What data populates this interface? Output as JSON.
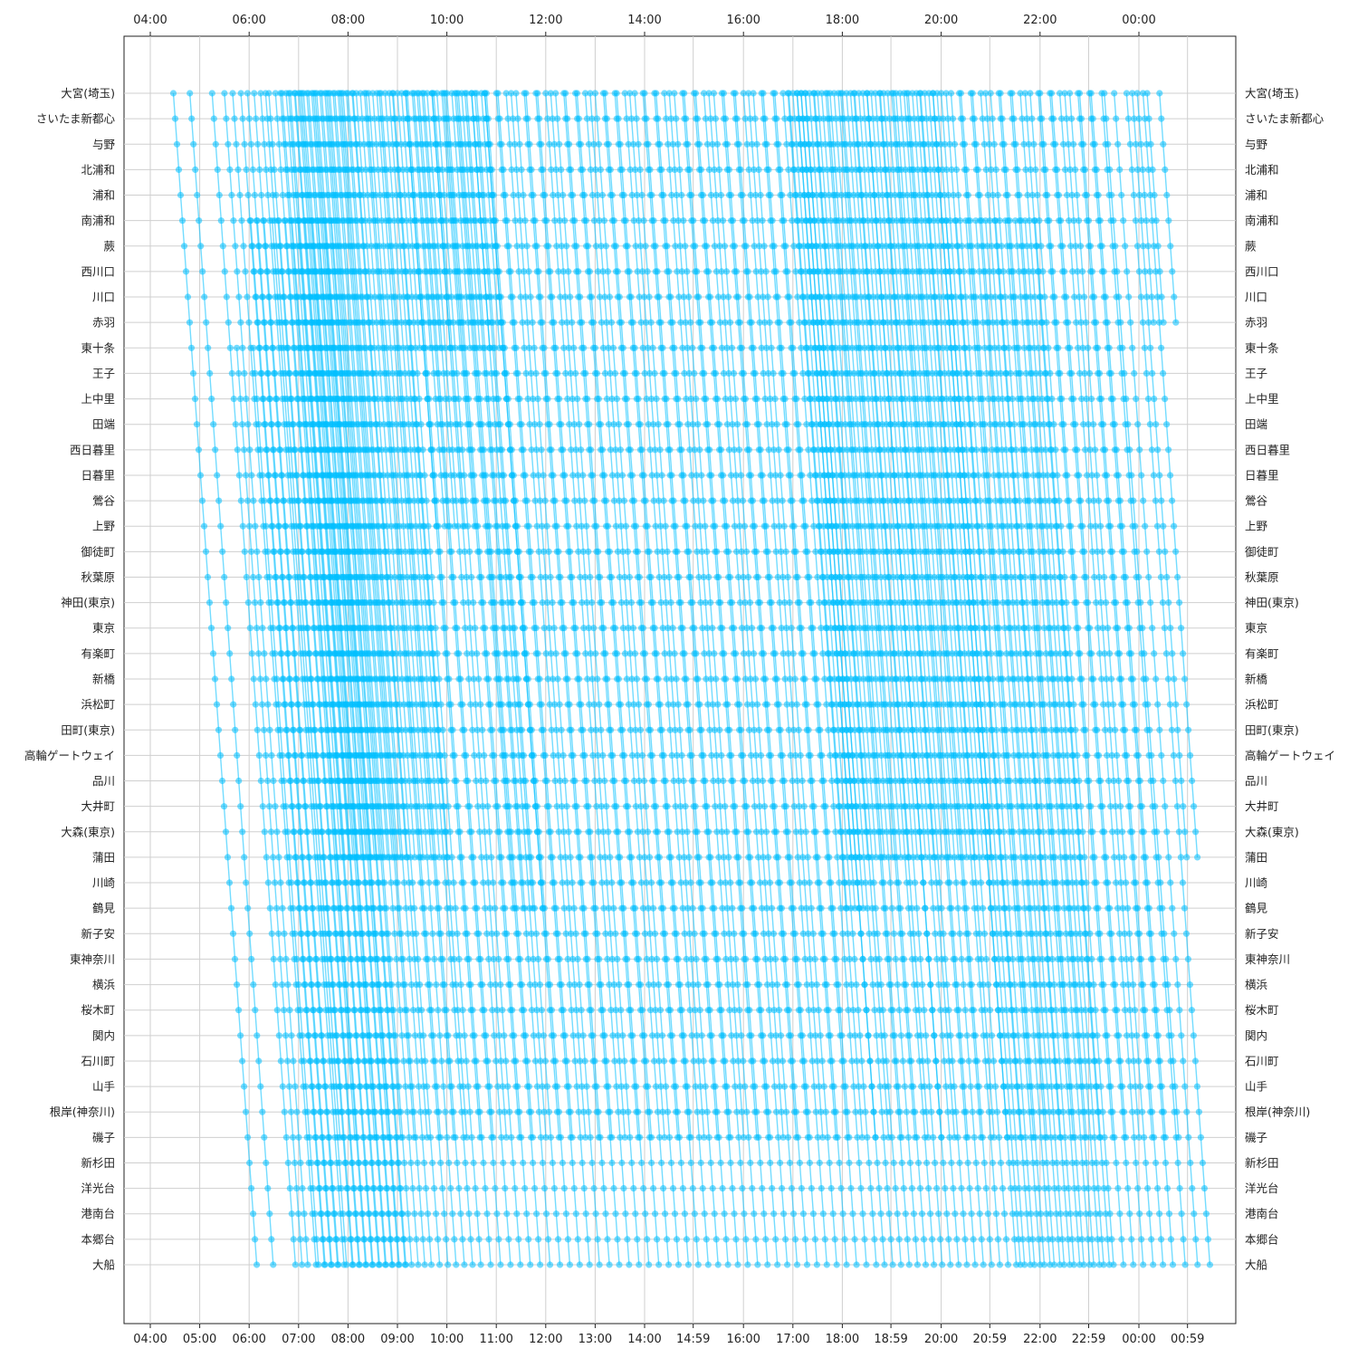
{
  "chart_data": {
    "type": "line",
    "title": "",
    "xlabel": "",
    "ylabel": "",
    "grid": true,
    "line_color": "#00BFFF",
    "x_range": [
      "04:00",
      "01:12"
    ],
    "x_ticks_top": [
      "04:00",
      "06:00",
      "08:00",
      "10:00",
      "12:00",
      "14:00",
      "16:00",
      "18:00",
      "20:00",
      "22:00",
      "00:00"
    ],
    "x_ticks_bottom": [
      "04:00",
      "05:00",
      "06:00",
      "07:00",
      "08:00",
      "09:00",
      "10:00",
      "11:00",
      "12:00",
      "13:00",
      "14:00",
      "14:59",
      "16:00",
      "17:00",
      "18:00",
      "18:59",
      "20:00",
      "20:59",
      "22:00",
      "22:59",
      "00:00",
      "00:59"
    ],
    "stations": [
      "大宮(埼玉)",
      "さいたま新都心",
      "与野",
      "北浦和",
      "浦和",
      "南浦和",
      "蕨",
      "西川口",
      "川口",
      "赤羽",
      "東十条",
      "王子",
      "上中里",
      "田端",
      "西日暮里",
      "日暮里",
      "鶯谷",
      "上野",
      "御徒町",
      "秋葉原",
      "神田(東京)",
      "東京",
      "有楽町",
      "新橋",
      "浜松町",
      "田町(東京)",
      "高輪ゲートウェイ",
      "品川",
      "大井町",
      "大森(東京)",
      "蒲田",
      "川崎",
      "鶴見",
      "新子安",
      "東神奈川",
      "横浜",
      "桜木町",
      "関内",
      "石川町",
      "山手",
      "根岸(神奈川)",
      "磯子",
      "新杉田",
      "洋光台",
      "港南台",
      "本郷台",
      "大船"
    ],
    "series": [
      {
        "from": "大宮(埼玉)",
        "to": "大船",
        "departures": [
          "04:28",
          "04:48",
          "05:15",
          "05:30",
          "05:40",
          "05:50",
          "05:58",
          "06:06",
          "06:14",
          "06:24",
          "06:32",
          "06:40",
          "06:48",
          "06:56",
          "07:04",
          "07:12",
          "07:20",
          "07:28",
          "07:36",
          "07:44",
          "07:52",
          "08:00",
          "08:10",
          "08:20",
          "08:30",
          "08:40",
          "08:50",
          "09:00",
          "09:12",
          "09:24",
          "09:36",
          "09:48",
          "10:00",
          "10:12",
          "10:24",
          "10:36",
          "10:48",
          "11:00",
          "11:12",
          "11:24",
          "11:36",
          "11:48",
          "12:00",
          "12:12",
          "12:24",
          "12:36",
          "12:48",
          "13:00",
          "13:12",
          "13:24",
          "13:36",
          "13:48",
          "14:00",
          "14:12",
          "14:24",
          "14:36",
          "14:48",
          "15:00",
          "15:12",
          "15:24",
          "15:36",
          "15:48",
          "16:00",
          "16:12",
          "16:24",
          "16:36",
          "16:48",
          "17:00",
          "17:10",
          "17:20",
          "17:30",
          "17:40",
          "17:50",
          "18:00",
          "18:10",
          "18:20",
          "18:30",
          "18:40",
          "18:50",
          "19:00",
          "19:10",
          "19:20",
          "19:30",
          "19:40",
          "19:50",
          "20:00",
          "20:12",
          "20:24",
          "20:36",
          "20:48",
          "21:00",
          "21:12",
          "21:24",
          "21:36",
          "21:48",
          "22:00",
          "22:12",
          "22:24",
          "22:36",
          "22:48",
          "23:00",
          "23:15",
          "23:30",
          "23:45"
        ]
      },
      {
        "from": "大宮(埼玉)",
        "to": "蒲田",
        "departures": [
          "06:45",
          "06:50",
          "06:55",
          "07:00",
          "07:06",
          "07:10",
          "07:16",
          "07:22",
          "07:26",
          "07:32",
          "07:38",
          "07:42",
          "07:48",
          "07:54",
          "07:58",
          "08:05",
          "08:15",
          "08:25",
          "08:35",
          "08:45",
          "08:55",
          "17:05",
          "17:15",
          "17:25",
          "17:35",
          "17:45",
          "17:55",
          "18:05",
          "18:15",
          "18:25",
          "18:35",
          "18:45",
          "18:55",
          "19:05",
          "19:15",
          "19:25",
          "19:35",
          "19:45",
          "19:55",
          "23:52",
          "00:05"
        ]
      },
      {
        "from": "大宮(埼玉)",
        "to": "赤羽",
        "departures": [
          "23:58",
          "00:10",
          "00:25"
        ]
      },
      {
        "from": "大宮(埼玉)",
        "to": "東十条",
        "departures": [
          "09:05",
          "09:18",
          "09:30",
          "09:42",
          "09:54",
          "10:06",
          "10:18",
          "10:30",
          "10:42"
        ]
      },
      {
        "from": "南浦和",
        "to": "大船",
        "departures": [
          "06:02",
          "06:10",
          "06:18",
          "06:28",
          "06:36",
          "06:44",
          "06:52",
          "07:00",
          "07:08",
          "07:16",
          "07:24",
          "07:32",
          "07:40",
          "20:06",
          "20:18",
          "20:30",
          "20:42",
          "20:54",
          "21:06",
          "21:18",
          "21:30",
          "21:42",
          "21:54"
        ]
      },
      {
        "from": "東十条",
        "to": "大船",
        "departures": [
          "05:45",
          "06:05"
        ]
      },
      {
        "from": "大宮(埼玉)",
        "to": "鶴見",
        "departures": [
          "10:10",
          "10:22",
          "10:34",
          "10:46",
          "16:55",
          "17:05",
          "17:15"
        ]
      },
      {
        "from": "大宮(埼玉)",
        "to": "上野",
        "departures": [
          "09:10",
          "09:20",
          "09:32",
          "09:44",
          "09:56"
        ]
      },
      {
        "from": "大宮(埼玉)",
        "to": "磯子",
        "departures": [
          "06:20",
          "06:38",
          "07:02",
          "07:18",
          "07:34",
          "07:50",
          "08:06",
          "08:22",
          "08:38",
          "08:54",
          "09:10",
          "09:26",
          "09:42",
          "09:58",
          "10:14",
          "10:30",
          "10:46",
          "11:02",
          "11:18",
          "11:34",
          "11:50",
          "12:06",
          "12:22",
          "12:38",
          "12:54",
          "13:10",
          "13:26",
          "13:42",
          "13:58",
          "14:14",
          "14:30",
          "14:46",
          "15:02",
          "15:18",
          "15:34",
          "15:50",
          "16:06",
          "16:22",
          "16:38",
          "16:54",
          "17:10",
          "17:26",
          "17:42",
          "17:58",
          "18:14",
          "18:30",
          "18:46",
          "19:02",
          "19:18",
          "19:34",
          "19:50",
          "20:06",
          "20:22",
          "20:38",
          "20:54",
          "21:10",
          "21:26",
          "21:42",
          "21:58",
          "22:14",
          "22:30",
          "22:46",
          "23:02",
          "23:18"
        ]
      }
    ]
  }
}
